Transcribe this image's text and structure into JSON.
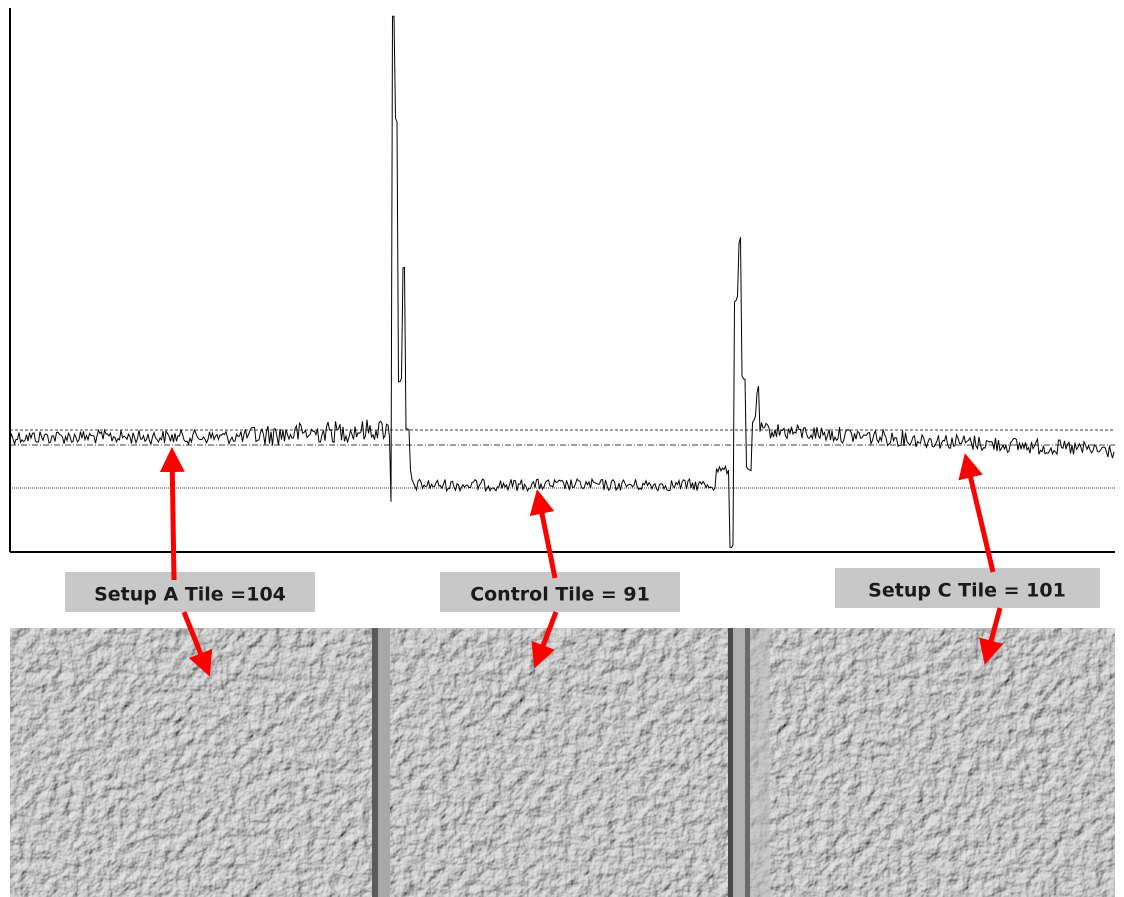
{
  "labels": [
    "Setup A Tile =104",
    "Control Tile = 91",
    "Setup C Tile = 101"
  ]
}
